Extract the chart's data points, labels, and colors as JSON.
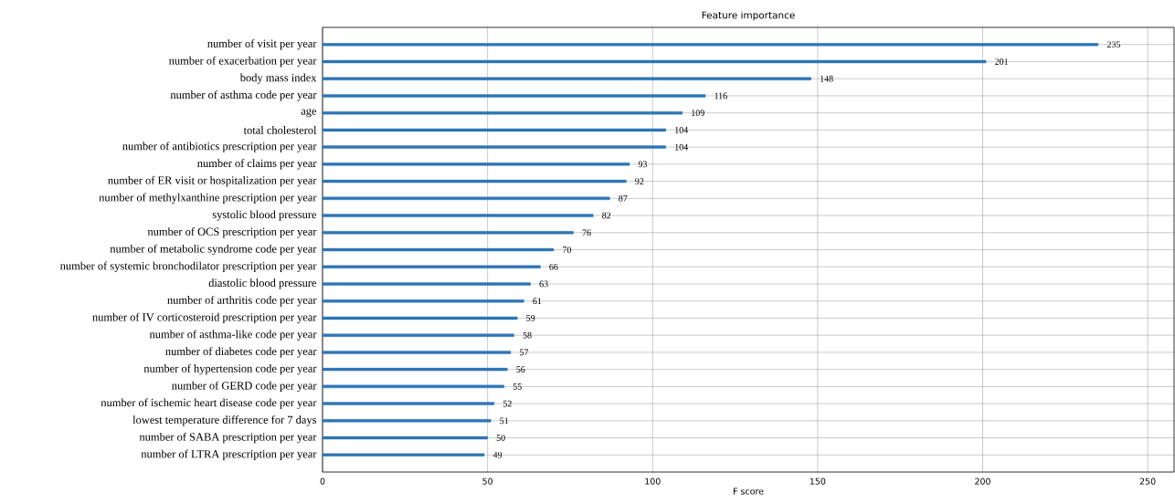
{
  "chart_data": {
    "type": "bar",
    "orientation": "horizontal",
    "title": "Feature importance",
    "xlabel": "F score",
    "categories": [
      "number of visit per year",
      "number of exacerbation per year",
      "body mass index",
      "number of asthma code per year",
      "age",
      "total cholesterol",
      "number of antibiotics prescription per year",
      "number of claims per year",
      "number of ER visit or hospitalization per year",
      "number of methylxanthine prescription per year",
      "systolic blood pressure",
      "number of OCS prescription per year",
      "number of metabolic syndrome code per year",
      "number of systemic bronchodilator prescription per year",
      "diastolic blood pressure",
      "number of arthritis code per year",
      "number of IV corticosteroid prescription per year",
      "number of asthma-like code per year",
      "number of diabetes code per year",
      "number of hypertension code per year",
      "number of GERD code per year",
      "number of ischemic heart disease code per year",
      "lowest temperature difference for 7 days",
      "number of SABA prescription per year",
      "number of LTRA prescription per year"
    ],
    "values": [
      235,
      201,
      148,
      116,
      109,
      104,
      104,
      93,
      92,
      87,
      82,
      76,
      70,
      66,
      63,
      61,
      59,
      58,
      57,
      56,
      55,
      52,
      51,
      50,
      49
    ],
    "color": "#2e75b6",
    "data_labels": true,
    "grid": true,
    "xlim": [
      0,
      258
    ],
    "xticks": [
      0,
      50,
      100,
      150,
      200,
      250
    ]
  }
}
